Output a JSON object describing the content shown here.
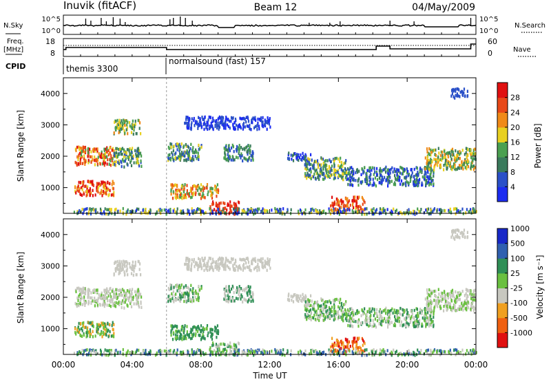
{
  "header": {
    "title": "Inuvik (fitACF)",
    "beam": "Beam 12",
    "date": "04/May/2009"
  },
  "summary_panels": {
    "nsky_label": "N.Sky",
    "nsky_ticks": [
      "10^5",
      "10^0"
    ],
    "nsearch_label": "N.Search",
    "freq_label": "Freq.",
    "freq_unit": "[MHz]",
    "freq_ticks": [
      "18",
      "8"
    ],
    "nave_label": "Nave",
    "nave_ticks": [
      "60",
      "0"
    ],
    "cpid_label": "CPID",
    "cpid_modes": [
      {
        "name": "themis 3300",
        "start_h": 0
      },
      {
        "name": "normalsound (fast) 157",
        "start_h": 6
      }
    ]
  },
  "colors": {
    "power": [
      "#1c2cf0",
      "#2a50c8",
      "#3a7a5c",
      "#4aa050",
      "#e8d020",
      "#f08a18",
      "#e84818",
      "#e01010"
    ],
    "velocity": [
      "#e01010",
      "#f06010",
      "#f0a020",
      "#c8c8c0",
      "#6ac040",
      "#2f8f56",
      "#3060b0",
      "#1828c8"
    ]
  },
  "chart_data": [
    {
      "type": "heatmap",
      "name": "power-panel",
      "ylabel": "Slant Range [km]",
      "yticks": [
        1000,
        2000,
        3000,
        4000
      ],
      "ylim": [
        180,
        4500
      ],
      "xlim_h": [
        0,
        24
      ],
      "colorbar_label": "Power [dB]",
      "colorbar_ticks": [
        "4",
        "8",
        "12",
        "16",
        "20",
        "24",
        "28"
      ],
      "clim": [
        0,
        30
      ]
    },
    {
      "type": "heatmap",
      "name": "velocity-panel",
      "ylabel": "Slant Range [km]",
      "yticks": [
        1000,
        2000,
        3000,
        4000
      ],
      "ylim": [
        180,
        4500
      ],
      "xlim_h": [
        0,
        24
      ],
      "colorbar_label": "Velocity [m s⁻¹]",
      "colorbar_ticks": [
        "-1000",
        "-500",
        "-100",
        "-25",
        "25",
        "100",
        "500",
        "1000"
      ]
    }
  ],
  "xaxis": {
    "label": "Time UT",
    "ticks": [
      "00:00",
      "04:00",
      "08:00",
      "12:00",
      "16:00",
      "20:00",
      "00:00"
    ]
  }
}
